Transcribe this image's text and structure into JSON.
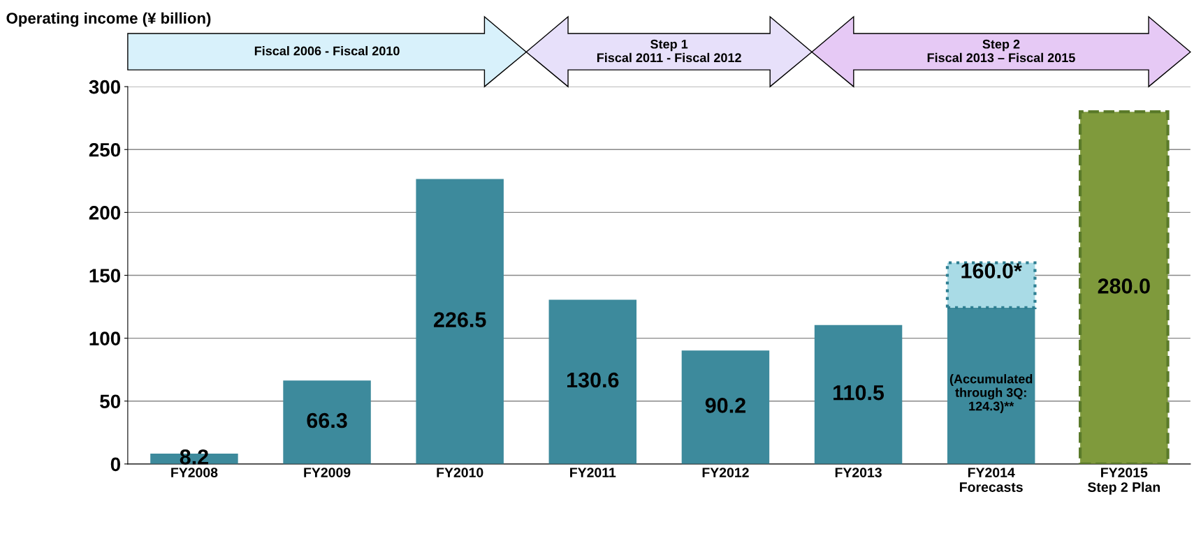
{
  "chart_data": {
    "type": "bar",
    "stacked": true,
    "title": "Operating income (¥ billion)",
    "categories": [
      "FY2008",
      "FY2009",
      "FY2010",
      "FY2011",
      "FY2012",
      "FY2013",
      "FY2014\nForecasts",
      "FY2015\nStep 2 Plan"
    ],
    "series": [
      {
        "color": "#3d8a9c",
        "values": [
          8.2,
          66.3,
          226.5,
          130.6,
          90.2,
          110.5,
          124.3,
          null
        ],
        "value_labels": [
          "8.2",
          "66.3",
          "226.5",
          "130.6",
          "90.2",
          "110.5",
          "(Accumulated\nthrough 3Q:\n124.3)**",
          null
        ]
      },
      {
        "color": "#a9dbe6",
        "line_style": "dotted",
        "values": [
          null,
          null,
          null,
          null,
          null,
          null,
          35.7,
          null
        ]
      },
      {
        "color": "#7f9a3c",
        "line_style": "dashed",
        "values": [
          null,
          null,
          null,
          null,
          null,
          null,
          null,
          280.0
        ],
        "value_labels": [
          null,
          null,
          null,
          null,
          null,
          null,
          null,
          "280.0"
        ]
      }
    ],
    "totals": [
      null,
      null,
      null,
      null,
      null,
      null,
      "160.0*",
      null
    ],
    "ylim": [
      0,
      300
    ],
    "yticks": [
      0,
      50,
      100,
      150,
      200,
      250,
      300
    ],
    "grid": "y",
    "legend": false,
    "annotations": [
      "Fiscal 2006 - Fiscal 2010",
      "Step 1\nFiscal 2011 - Fiscal 2012",
      "Step 2\nFiscal 2013 – Fiscal 2015"
    ]
  }
}
